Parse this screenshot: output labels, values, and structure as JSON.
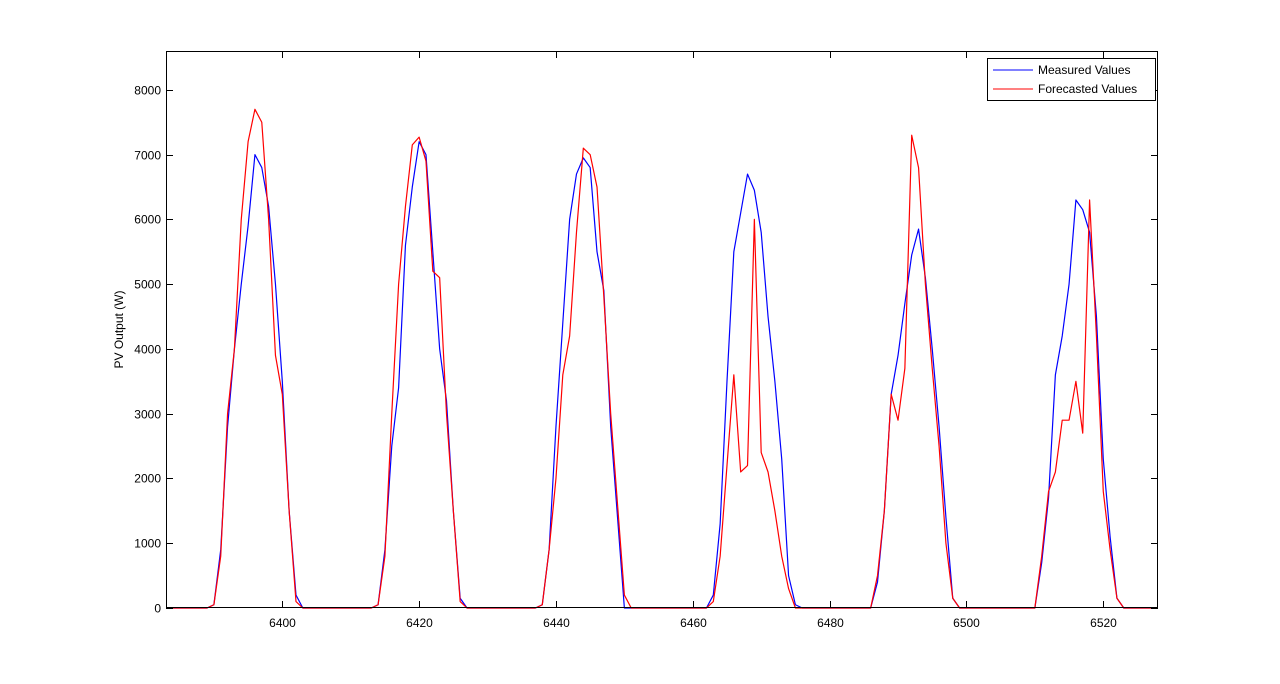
{
  "chart_data": {
    "type": "line",
    "title": "",
    "xlabel": "",
    "ylabel": "PV Output (W)",
    "xlim": [
      6383,
      6528
    ],
    "ylim": [
      0,
      8600
    ],
    "xticks": [
      6400,
      6420,
      6440,
      6460,
      6480,
      6500,
      6520
    ],
    "yticks": [
      0,
      1000,
      2000,
      3000,
      4000,
      5000,
      6000,
      7000,
      8000
    ],
    "grid": false,
    "legend_position": "top-right",
    "series": [
      {
        "name": "Measured Values",
        "color": "#0000ff",
        "points": [
          [
            6383,
            0
          ],
          [
            6389,
            0
          ],
          [
            6390,
            50
          ],
          [
            6391,
            900
          ],
          [
            6392,
            2800
          ],
          [
            6393,
            4000
          ],
          [
            6394,
            5000
          ],
          [
            6395,
            5900
          ],
          [
            6396,
            7000
          ],
          [
            6397,
            6800
          ],
          [
            6398,
            6200
          ],
          [
            6399,
            5000
          ],
          [
            6400,
            3500
          ],
          [
            6401,
            1500
          ],
          [
            6402,
            200
          ],
          [
            6403,
            0
          ],
          [
            6413,
            0
          ],
          [
            6414,
            50
          ],
          [
            6415,
            900
          ],
          [
            6416,
            2500
          ],
          [
            6417,
            3400
          ],
          [
            6418,
            5600
          ],
          [
            6419,
            6500
          ],
          [
            6420,
            7200
          ],
          [
            6421,
            7000
          ],
          [
            6422,
            5500
          ],
          [
            6423,
            4000
          ],
          [
            6424,
            3200
          ],
          [
            6425,
            1500
          ],
          [
            6426,
            150
          ],
          [
            6427,
            0
          ],
          [
            6437,
            0
          ],
          [
            6438,
            50
          ],
          [
            6439,
            900
          ],
          [
            6440,
            2800
          ],
          [
            6441,
            4400
          ],
          [
            6442,
            6000
          ],
          [
            6443,
            6700
          ],
          [
            6444,
            6950
          ],
          [
            6445,
            6800
          ],
          [
            6446,
            5500
          ],
          [
            6447,
            4900
          ],
          [
            6448,
            2800
          ],
          [
            6449,
            1400
          ],
          [
            6450,
            0
          ],
          [
            6462,
            0
          ],
          [
            6463,
            200
          ],
          [
            6464,
            1300
          ],
          [
            6465,
            3500
          ],
          [
            6466,
            5500
          ],
          [
            6467,
            6100
          ],
          [
            6468,
            6700
          ],
          [
            6469,
            6450
          ],
          [
            6470,
            5800
          ],
          [
            6471,
            4500
          ],
          [
            6472,
            3500
          ],
          [
            6473,
            2300
          ],
          [
            6474,
            500
          ],
          [
            6475,
            50
          ],
          [
            6476,
            0
          ],
          [
            6486,
            0
          ],
          [
            6487,
            400
          ],
          [
            6488,
            1500
          ],
          [
            6489,
            3300
          ],
          [
            6490,
            3900
          ],
          [
            6491,
            4700
          ],
          [
            6492,
            5450
          ],
          [
            6493,
            5850
          ],
          [
            6494,
            5100
          ],
          [
            6495,
            4000
          ],
          [
            6496,
            2800
          ],
          [
            6497,
            1400
          ],
          [
            6498,
            150
          ],
          [
            6499,
            0
          ],
          [
            6510,
            0
          ],
          [
            6511,
            700
          ],
          [
            6512,
            1700
          ],
          [
            6513,
            3600
          ],
          [
            6514,
            4200
          ],
          [
            6515,
            5000
          ],
          [
            6516,
            6300
          ],
          [
            6517,
            6150
          ],
          [
            6518,
            5800
          ],
          [
            6519,
            4500
          ],
          [
            6520,
            2300
          ],
          [
            6521,
            1100
          ],
          [
            6522,
            150
          ],
          [
            6523,
            0
          ],
          [
            6528,
            0
          ]
        ]
      },
      {
        "name": "Forecasted Values",
        "color": "#ff0000",
        "points": [
          [
            6383,
            0
          ],
          [
            6389,
            0
          ],
          [
            6390,
            50
          ],
          [
            6391,
            800
          ],
          [
            6392,
            3000
          ],
          [
            6393,
            4000
          ],
          [
            6394,
            6000
          ],
          [
            6395,
            7200
          ],
          [
            6396,
            7700
          ],
          [
            6397,
            7500
          ],
          [
            6398,
            6000
          ],
          [
            6399,
            3900
          ],
          [
            6400,
            3300
          ],
          [
            6401,
            1500
          ],
          [
            6402,
            100
          ],
          [
            6403,
            0
          ],
          [
            6413,
            0
          ],
          [
            6414,
            50
          ],
          [
            6415,
            800
          ],
          [
            6416,
            3000
          ],
          [
            6417,
            5000
          ],
          [
            6418,
            6200
          ],
          [
            6419,
            7150
          ],
          [
            6420,
            7270
          ],
          [
            6421,
            6900
          ],
          [
            6422,
            5200
          ],
          [
            6423,
            5100
          ],
          [
            6424,
            3000
          ],
          [
            6425,
            1500
          ],
          [
            6426,
            100
          ],
          [
            6427,
            0
          ],
          [
            6437,
            0
          ],
          [
            6438,
            50
          ],
          [
            6439,
            900
          ],
          [
            6440,
            2000
          ],
          [
            6441,
            3600
          ],
          [
            6442,
            4200
          ],
          [
            6443,
            5800
          ],
          [
            6444,
            7100
          ],
          [
            6445,
            7000
          ],
          [
            6446,
            6500
          ],
          [
            6447,
            4800
          ],
          [
            6448,
            3000
          ],
          [
            6449,
            1600
          ],
          [
            6450,
            200
          ],
          [
            6451,
            0
          ],
          [
            6462,
            0
          ],
          [
            6463,
            100
          ],
          [
            6464,
            800
          ],
          [
            6465,
            2200
          ],
          [
            6466,
            3600
          ],
          [
            6467,
            2100
          ],
          [
            6468,
            2200
          ],
          [
            6469,
            6000
          ],
          [
            6470,
            2400
          ],
          [
            6471,
            2100
          ],
          [
            6472,
            1500
          ],
          [
            6473,
            800
          ],
          [
            6474,
            300
          ],
          [
            6475,
            0
          ],
          [
            6486,
            0
          ],
          [
            6487,
            500
          ],
          [
            6488,
            1500
          ],
          [
            6489,
            3300
          ],
          [
            6490,
            2900
          ],
          [
            6491,
            3700
          ],
          [
            6492,
            7300
          ],
          [
            6493,
            6800
          ],
          [
            6494,
            5000
          ],
          [
            6495,
            3700
          ],
          [
            6496,
            2500
          ],
          [
            6497,
            1000
          ],
          [
            6498,
            150
          ],
          [
            6499,
            0
          ],
          [
            6510,
            0
          ],
          [
            6511,
            800
          ],
          [
            6512,
            1800
          ],
          [
            6513,
            2100
          ],
          [
            6514,
            2900
          ],
          [
            6515,
            2900
          ],
          [
            6516,
            3500
          ],
          [
            6517,
            2700
          ],
          [
            6518,
            6300
          ],
          [
            6519,
            4200
          ],
          [
            6520,
            1800
          ],
          [
            6521,
            900
          ],
          [
            6522,
            150
          ],
          [
            6523,
            0
          ],
          [
            6528,
            0
          ]
        ]
      }
    ]
  }
}
